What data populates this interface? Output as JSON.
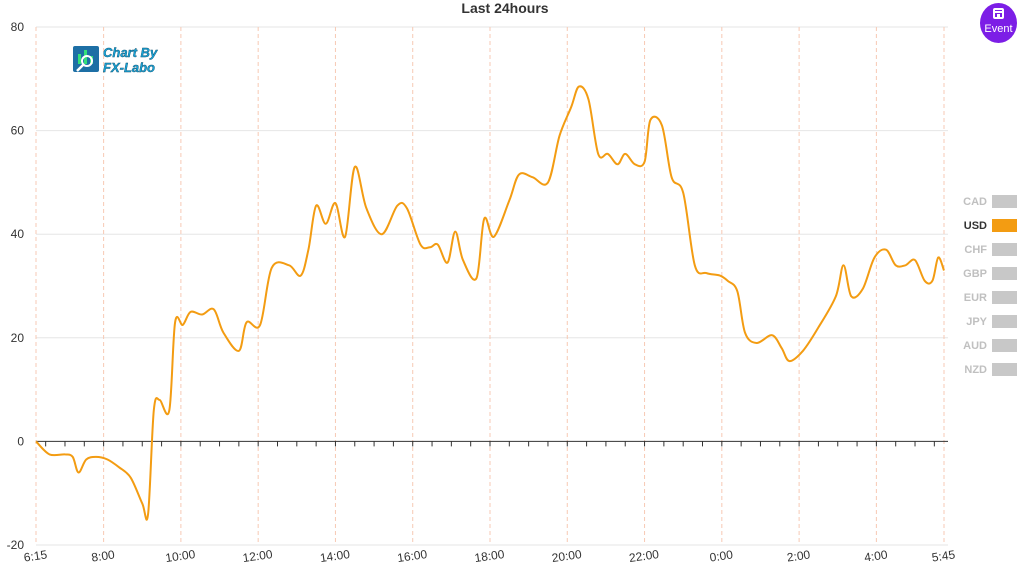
{
  "chart_data": {
    "type": "line",
    "title": "Last 24hours",
    "xlabel": "",
    "ylabel": "",
    "ylim": [
      -20,
      80
    ],
    "yticks": [
      -20,
      0,
      20,
      40,
      60,
      80
    ],
    "x_range": [
      6.25,
      29.75
    ],
    "xticks": [
      {
        "hour": 6.25,
        "label": "6:15"
      },
      {
        "hour": 8,
        "label": "8:00"
      },
      {
        "hour": 10,
        "label": "10:00"
      },
      {
        "hour": 12,
        "label": "12:00"
      },
      {
        "hour": 14,
        "label": "14:00"
      },
      {
        "hour": 16,
        "label": "16:00"
      },
      {
        "hour": 18,
        "label": "18:00"
      },
      {
        "hour": 20,
        "label": "20:00"
      },
      {
        "hour": 22,
        "label": "22:00"
      },
      {
        "hour": 24,
        "label": "0:00"
      },
      {
        "hour": 26,
        "label": "2:00"
      },
      {
        "hour": 28,
        "label": "4:00"
      },
      {
        "hour": 29.75,
        "label": "5:45"
      }
    ],
    "grid": true,
    "legend_position": "right",
    "series": [
      {
        "name": "USD",
        "color": "#f39c12",
        "active": true,
        "points": [
          [
            6.25,
            0
          ],
          [
            6.6,
            -2.5
          ],
          [
            7.0,
            -2.5
          ],
          [
            7.2,
            -3
          ],
          [
            7.35,
            -6
          ],
          [
            7.55,
            -3.5
          ],
          [
            7.8,
            -3
          ],
          [
            8.1,
            -3.5
          ],
          [
            8.4,
            -5
          ],
          [
            8.7,
            -7
          ],
          [
            9.0,
            -12
          ],
          [
            9.15,
            -14
          ],
          [
            9.3,
            6
          ],
          [
            9.45,
            8
          ],
          [
            9.7,
            6
          ],
          [
            9.85,
            23
          ],
          [
            10.05,
            22.5
          ],
          [
            10.25,
            25
          ],
          [
            10.55,
            24.5
          ],
          [
            10.85,
            25.5
          ],
          [
            11.1,
            21
          ],
          [
            11.5,
            17.5
          ],
          [
            11.7,
            23
          ],
          [
            12.05,
            22.5
          ],
          [
            12.35,
            33.5
          ],
          [
            12.8,
            34
          ],
          [
            13.1,
            32
          ],
          [
            13.3,
            37
          ],
          [
            13.5,
            45.5
          ],
          [
            13.75,
            42
          ],
          [
            14.0,
            46
          ],
          [
            14.25,
            39.5
          ],
          [
            14.5,
            53
          ],
          [
            14.8,
            45
          ],
          [
            15.2,
            40
          ],
          [
            15.6,
            45.5
          ],
          [
            15.85,
            45
          ],
          [
            16.2,
            38
          ],
          [
            16.45,
            37.5
          ],
          [
            16.65,
            38
          ],
          [
            16.9,
            34.5
          ],
          [
            17.1,
            40.5
          ],
          [
            17.3,
            35
          ],
          [
            17.65,
            31.5
          ],
          [
            17.85,
            43
          ],
          [
            18.1,
            39.5
          ],
          [
            18.5,
            46.5
          ],
          [
            18.75,
            51.5
          ],
          [
            19.1,
            51
          ],
          [
            19.5,
            50
          ],
          [
            19.8,
            59
          ],
          [
            20.1,
            64.5
          ],
          [
            20.3,
            68.5
          ],
          [
            20.55,
            66
          ],
          [
            20.8,
            55.5
          ],
          [
            21.05,
            55.5
          ],
          [
            21.3,
            53.5
          ],
          [
            21.5,
            55.5
          ],
          [
            21.75,
            53.5
          ],
          [
            22.0,
            54
          ],
          [
            22.15,
            62
          ],
          [
            22.45,
            61
          ],
          [
            22.7,
            51
          ],
          [
            23.0,
            48
          ],
          [
            23.3,
            34
          ],
          [
            23.6,
            32.5
          ],
          [
            23.95,
            32
          ],
          [
            24.15,
            31
          ],
          [
            24.4,
            29
          ],
          [
            24.6,
            21
          ],
          [
            24.9,
            19
          ],
          [
            25.3,
            20.5
          ],
          [
            25.55,
            18
          ],
          [
            25.75,
            15.5
          ],
          [
            26.1,
            17.5
          ],
          [
            26.5,
            22
          ],
          [
            26.95,
            28
          ],
          [
            27.15,
            34
          ],
          [
            27.35,
            28
          ],
          [
            27.65,
            29.5
          ],
          [
            27.95,
            35.5
          ],
          [
            28.25,
            37
          ],
          [
            28.5,
            34
          ],
          [
            28.75,
            34
          ],
          [
            29.0,
            35
          ],
          [
            29.25,
            31
          ],
          [
            29.45,
            31
          ],
          [
            29.6,
            35.5
          ],
          [
            29.75,
            33
          ]
        ]
      }
    ],
    "legend": [
      {
        "label": "CAD",
        "color": "#c8c8c8",
        "active": false
      },
      {
        "label": "USD",
        "color": "#f39c12",
        "active": true
      },
      {
        "label": "CHF",
        "color": "#c8c8c8",
        "active": false
      },
      {
        "label": "GBP",
        "color": "#c8c8c8",
        "active": false
      },
      {
        "label": "EUR",
        "color": "#c8c8c8",
        "active": false
      },
      {
        "label": "JPY",
        "color": "#c8c8c8",
        "active": false
      },
      {
        "label": "AUD",
        "color": "#c8c8c8",
        "active": false
      },
      {
        "label": "NZD",
        "color": "#c8c8c8",
        "active": false
      }
    ]
  },
  "logo": {
    "line1": "Chart By",
    "line2": "FX-Labo",
    "icon": "chart-search-icon"
  },
  "event_button": {
    "label": "Event",
    "icon": "calendar-icon",
    "color": "#7c1ee6"
  },
  "colors": {
    "grid_vertical": "#f7c9b4",
    "grid_horizontal": "#e6e6e6",
    "axis": "#333333",
    "legend_active_text": "#333333",
    "legend_inactive_text": "#c0c0c0"
  }
}
